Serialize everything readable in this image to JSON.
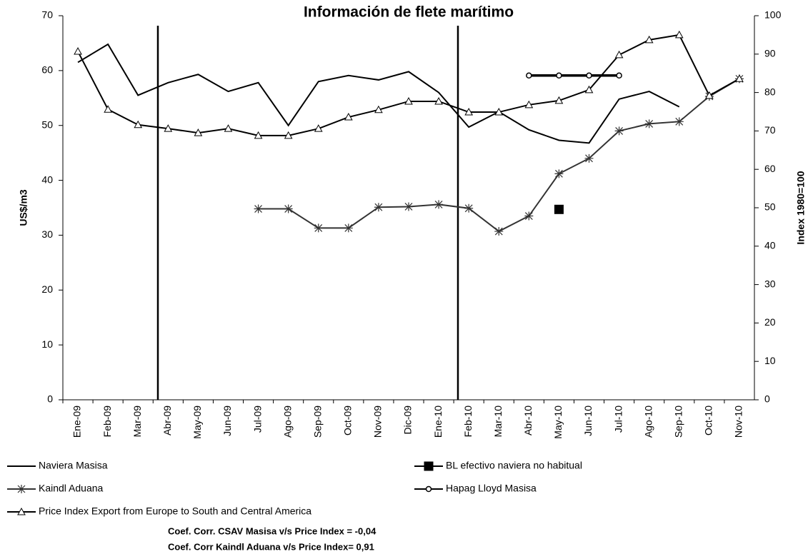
{
  "chart_data": {
    "type": "line",
    "title": "Información de flete marítimo",
    "y_label": "US$/m3",
    "y2_label": "Index 1980=100",
    "categories": [
      "Ene-09",
      "Feb-09",
      "Mar-09",
      "Abr-09",
      "May-09",
      "Jun-09",
      "Jul-09",
      "Ago-09",
      "Sep-09",
      "Oct-09",
      "Nov-09",
      "Dic-09",
      "Ene-10",
      "Feb-10",
      "Mar-10",
      "Abr-10",
      "May-10",
      "Jun-10",
      "Jul-10",
      "Ago-10",
      "Sep-10",
      "Oct-10",
      "Nov-10"
    ],
    "ylim": [
      0,
      70
    ],
    "yticks": [
      0,
      10,
      20,
      30,
      40,
      50,
      60,
      70
    ],
    "y2lim": [
      0,
      100
    ],
    "y2ticks": [
      0,
      10,
      20,
      30,
      40,
      50,
      60,
      70,
      80,
      90,
      100
    ],
    "grid": false,
    "series": [
      {
        "name": "Naviera Masisa",
        "color": "#000000",
        "marker": "none",
        "line": true,
        "axis": "y",
        "values": [
          61.5,
          64.8,
          55.5,
          57.8,
          59.3,
          56.2,
          57.8,
          50.0,
          58.0,
          59.1,
          58.3,
          59.8,
          56.0,
          49.7,
          52.5,
          49.2,
          47.3,
          46.8,
          54.8,
          56.2,
          53.4,
          null,
          null
        ]
      },
      {
        "name": "BL efectivo naviera no habitual",
        "color": "#000000",
        "marker": "square",
        "line": false,
        "axis": "y",
        "values": [
          null,
          null,
          null,
          null,
          null,
          null,
          null,
          null,
          null,
          null,
          null,
          null,
          null,
          null,
          null,
          null,
          34.7,
          null,
          null,
          null,
          null,
          null,
          null
        ]
      },
      {
        "name": "Kaindl Aduana",
        "color": "#333333",
        "marker": "star",
        "line": true,
        "axis": "y",
        "values": [
          null,
          null,
          null,
          null,
          null,
          null,
          34.8,
          34.8,
          31.3,
          31.3,
          35.1,
          35.2,
          35.6,
          34.9,
          30.7,
          33.5,
          41.2,
          44.0,
          49.0,
          50.3,
          50.7,
          55.3,
          58.5
        ]
      },
      {
        "name": "Hapag Lloyd Masisa",
        "color": "#000000",
        "marker": "circle",
        "line": true,
        "axis": "y",
        "values": [
          null,
          null,
          null,
          null,
          null,
          null,
          null,
          null,
          null,
          null,
          null,
          null,
          null,
          null,
          null,
          59.1,
          59.1,
          59.1,
          59.1,
          null,
          null,
          null,
          null
        ]
      },
      {
        "name": "Price Index Export from Europe to South and Central America",
        "color": "#000000",
        "marker": "triangle",
        "line": true,
        "axis": "y2",
        "values": [
          90.7,
          75.6,
          71.6,
          70.6,
          69.5,
          70.6,
          68.8,
          68.8,
          70.6,
          73.6,
          75.5,
          77.7,
          77.7,
          74.9,
          74.9,
          76.8,
          77.9,
          80.7,
          89.8,
          93.7,
          95.0,
          79.2,
          83.6
        ]
      }
    ],
    "notes": [
      "Coef. Corr. CSAV Masisa v/s Price Index = -0,04",
      "Coef. Corr Kaindl Aduana v/s Price Index= 0,91"
    ]
  }
}
